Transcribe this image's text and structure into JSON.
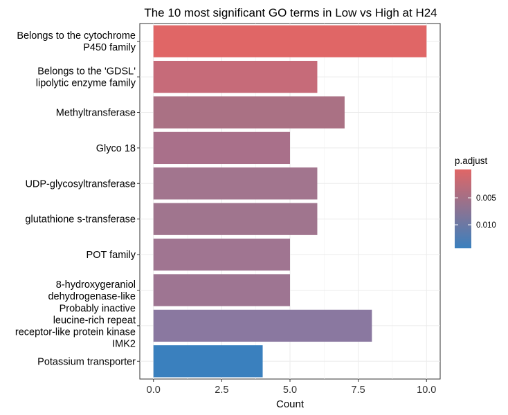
{
  "chart_data": {
    "type": "bar",
    "orientation": "horizontal",
    "title": "The 10 most significant GO terms in Low vs High at H24",
    "xlabel": "Count",
    "ylabel": "",
    "xlim": [
      0,
      10.5
    ],
    "xticks": [
      0,
      2.5,
      5,
      7.5,
      10
    ],
    "xtick_labels": [
      "0.0",
      "2.5",
      "5.0",
      "7.5",
      "10.0"
    ],
    "grid": true,
    "categories": [
      [
        "Belongs to the cytochrome",
        "P450 family"
      ],
      [
        "Belongs to the 'GDSL'",
        "lipolytic enzyme family"
      ],
      [
        "Methyltransferase"
      ],
      [
        "Glyco 18"
      ],
      [
        "UDP-glycosyltransferase"
      ],
      [
        "glutathione s-transferase"
      ],
      [
        "POT family"
      ],
      [
        "8-hydroxygeraniol",
        "dehydrogenase-like"
      ],
      [
        "Probably inactive",
        "leucine-rich repeat",
        "receptor-like protein kinase",
        "IMK2"
      ],
      [
        "Potassium transporter"
      ]
    ],
    "values": [
      10,
      6,
      7,
      5,
      6,
      6,
      5,
      5,
      8,
      4
    ],
    "bar_colors": [
      "#e06666",
      "#c66b79",
      "#aa7184",
      "#a9708a",
      "#a2758e",
      "#a0758e",
      "#a07591",
      "#9e7592",
      "#8a78a0",
      "#3a80be"
    ],
    "legend": {
      "title": "p.adjust",
      "position": "right",
      "gradient_top": "#e06666",
      "gradient_bottom": "#3a80be",
      "ticks": [
        "0.005",
        "0.010"
      ]
    }
  }
}
